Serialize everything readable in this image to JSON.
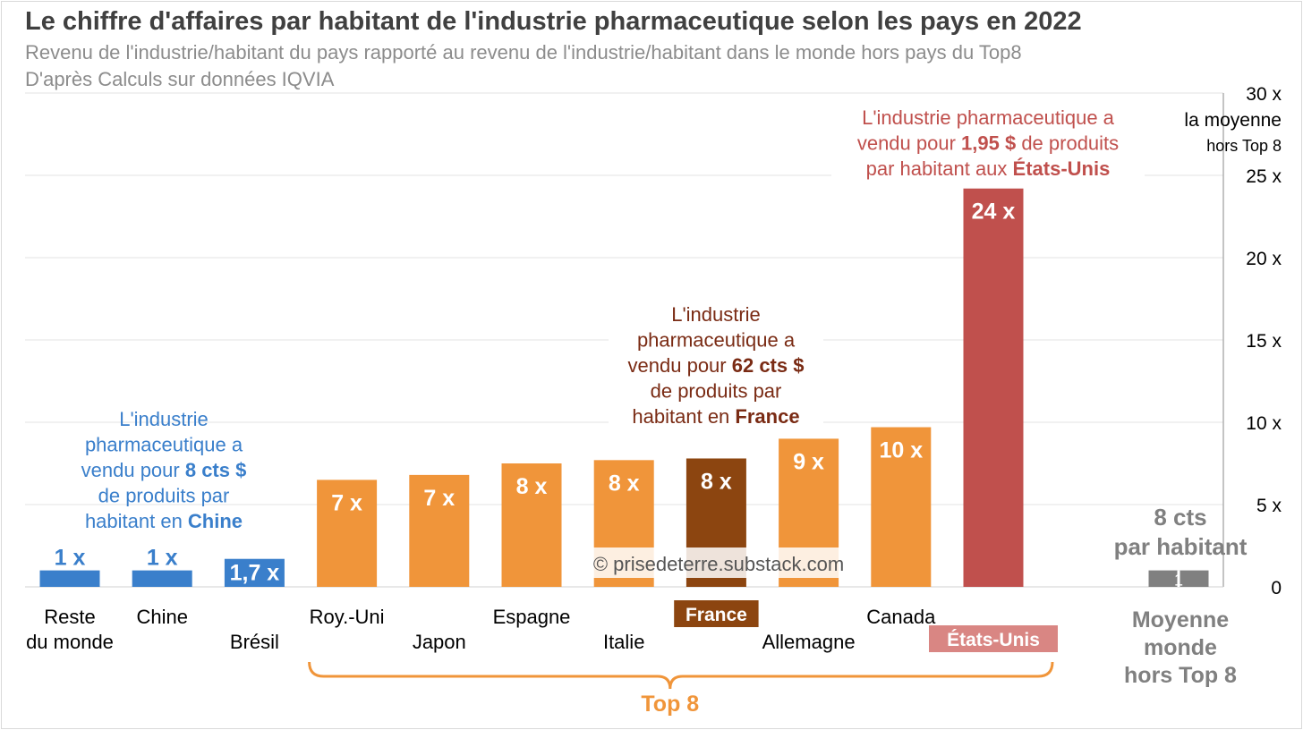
{
  "title": "Le chiffre d'affaires par habitant de l'industrie pharmaceutique selon les pays en 2022",
  "subtitle": "Revenu de l'industrie/habitant du pays rapporté au revenu de l'industrie/habitant dans le monde hors pays du Top8",
  "source": "D'après Calculs sur données IQVIA",
  "watermark": "© prisedeterre.substack.com",
  "colors": {
    "blue": "#3a7fcb",
    "orange": "#f0953a",
    "france": "#8c4510",
    "usa": "#c0504d",
    "usa_label_bg": "#d98683",
    "gray": "#808080",
    "france_text": "#7a2b14",
    "usa_text": "#c0504d"
  },
  "chart_data": {
    "type": "bar",
    "ylim": [
      0,
      30
    ],
    "yticks": [
      0,
      5,
      10,
      15,
      20,
      25,
      30
    ],
    "ytick_labels": [
      "0",
      "5 x",
      "10 x",
      "15 x",
      "20 x",
      "25 x",
      "30 x"
    ],
    "ylabel": [
      "la moyenne",
      "hors Top 8"
    ],
    "grid": true,
    "categories": [
      {
        "label": [
          "Reste",
          "du monde"
        ],
        "value": 1,
        "data_label": "1 x",
        "color": "blue",
        "label_row": 0
      },
      {
        "label": [
          "Chine"
        ],
        "value": 1,
        "data_label": "1 x",
        "color": "blue",
        "label_row": 0
      },
      {
        "label": [
          "Brésil"
        ],
        "value": 1.7,
        "data_label": "1,7 x",
        "color": "blue",
        "label_row": 1
      },
      {
        "label": [
          "Roy.-Uni"
        ],
        "value": 6.5,
        "data_label": "7 x",
        "color": "orange",
        "label_row": 0
      },
      {
        "label": [
          "Japon"
        ],
        "value": 6.8,
        "data_label": "7 x",
        "color": "orange",
        "label_row": 1
      },
      {
        "label": [
          "Espagne"
        ],
        "value": 7.5,
        "data_label": "8 x",
        "color": "orange",
        "label_row": 0
      },
      {
        "label": [
          "Italie"
        ],
        "value": 7.7,
        "data_label": "8 x",
        "color": "orange",
        "label_row": 1
      },
      {
        "label": [
          "France"
        ],
        "value": 7.8,
        "data_label": "8 x",
        "color": "france",
        "label_row": 0,
        "boxed": true
      },
      {
        "label": [
          "Allemagne"
        ],
        "value": 9.0,
        "data_label": "9 x",
        "color": "orange",
        "label_row": 1
      },
      {
        "label": [
          "Canada"
        ],
        "value": 9.7,
        "data_label": "10 x",
        "color": "orange",
        "label_row": 0
      },
      {
        "label": [
          "États-Unis"
        ],
        "value": 24.2,
        "data_label": "24 x",
        "color": "usa",
        "label_row": 1,
        "boxed": true
      },
      {
        "label": [
          "Moyenne",
          "monde",
          "hors Top 8"
        ],
        "value": 1,
        "data_label": "1",
        "color": "gray",
        "label_row": 0,
        "gap_before": true
      }
    ],
    "group_label": "Top 8",
    "average_label": [
      "8 cts",
      "par habitant"
    ]
  },
  "annotations": {
    "chine": {
      "lines": [
        [
          {
            "t": "L'industrie"
          }
        ],
        [
          {
            "t": "pharmaceutique a"
          }
        ],
        [
          {
            "t": "vendu pour "
          },
          {
            "t": "8 cts $",
            "b": true
          }
        ],
        [
          {
            "t": "de produits par"
          }
        ],
        [
          {
            "t": "habitant en "
          },
          {
            "t": "Chine",
            "b": true
          }
        ]
      ]
    },
    "france": {
      "lines": [
        [
          {
            "t": "L'industrie"
          }
        ],
        [
          {
            "t": "pharmaceutique a"
          }
        ],
        [
          {
            "t": "vendu pour "
          },
          {
            "t": "62 cts $",
            "b": true
          }
        ],
        [
          {
            "t": "de produits par"
          }
        ],
        [
          {
            "t": "habitant en "
          },
          {
            "t": "France",
            "b": true
          }
        ]
      ]
    },
    "usa": {
      "lines": [
        [
          {
            "t": "L'industrie pharmaceutique a"
          }
        ],
        [
          {
            "t": "vendu pour "
          },
          {
            "t": "1,95 $",
            "b": true
          },
          {
            "t": " de produits"
          }
        ],
        [
          {
            "t": "par habitant aux "
          },
          {
            "t": "États-Unis",
            "b": true
          }
        ]
      ]
    }
  }
}
